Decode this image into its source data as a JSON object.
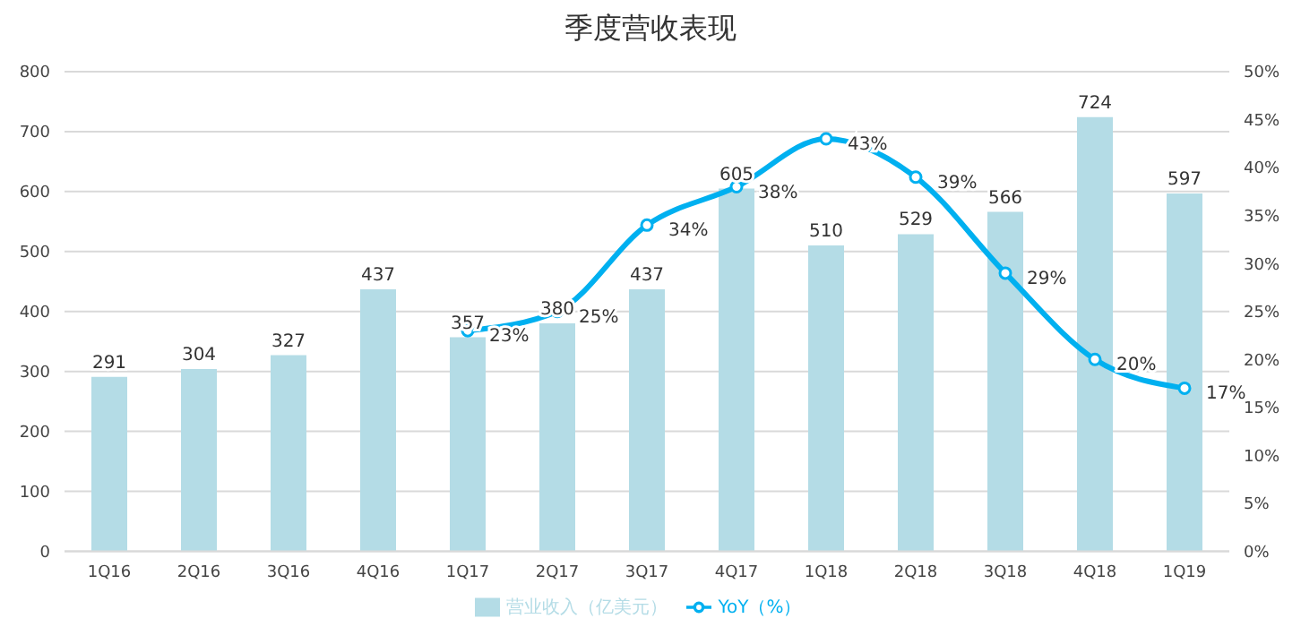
{
  "chart_data": {
    "type": "bar",
    "title": "季度营收表现",
    "categories": [
      "1Q16",
      "2Q16",
      "3Q16",
      "4Q16",
      "1Q17",
      "2Q17",
      "3Q17",
      "4Q17",
      "1Q18",
      "2Q18",
      "3Q18",
      "4Q18",
      "1Q19"
    ],
    "series": [
      {
        "name": "营业收入（亿美元）",
        "color": "#b4dce6",
        "values": [
          291,
          304,
          327,
          437,
          357,
          380,
          437,
          605,
          510,
          529,
          566,
          724,
          597
        ]
      },
      {
        "name": "YoY（%）",
        "type": "line",
        "axis": "y2",
        "color": "#00b0f0",
        "values": [
          null,
          null,
          null,
          null,
          23,
          25,
          34,
          38,
          43,
          39,
          29,
          20,
          17
        ],
        "value_labels": [
          null,
          null,
          null,
          null,
          "23%",
          "25%",
          "34%",
          "38%",
          "43%",
          "39%",
          "29%",
          "20%",
          "17%"
        ]
      }
    ],
    "data_labels": true,
    "ylim": [
      0,
      800
    ],
    "yticks": [
      0,
      100,
      200,
      300,
      400,
      500,
      600,
      700,
      800
    ],
    "y2lim": [
      0,
      50
    ],
    "y2ticks": [
      {
        "value": 0,
        "label": "0%"
      },
      {
        "value": 5,
        "label": "5%"
      },
      {
        "value": 10,
        "label": "10%"
      },
      {
        "value": 15,
        "label": "15%"
      },
      {
        "value": 20,
        "label": "20%"
      },
      {
        "value": 25,
        "label": "25%"
      },
      {
        "value": 30,
        "label": "30%"
      },
      {
        "value": 35,
        "label": "35%"
      },
      {
        "value": 40,
        "label": "40%"
      },
      {
        "value": 45,
        "label": "45%"
      },
      {
        "value": 50,
        "label": "50%"
      }
    ],
    "grid": "y",
    "legend": "bottom",
    "marker": "circle",
    "line_style": "solid"
  }
}
